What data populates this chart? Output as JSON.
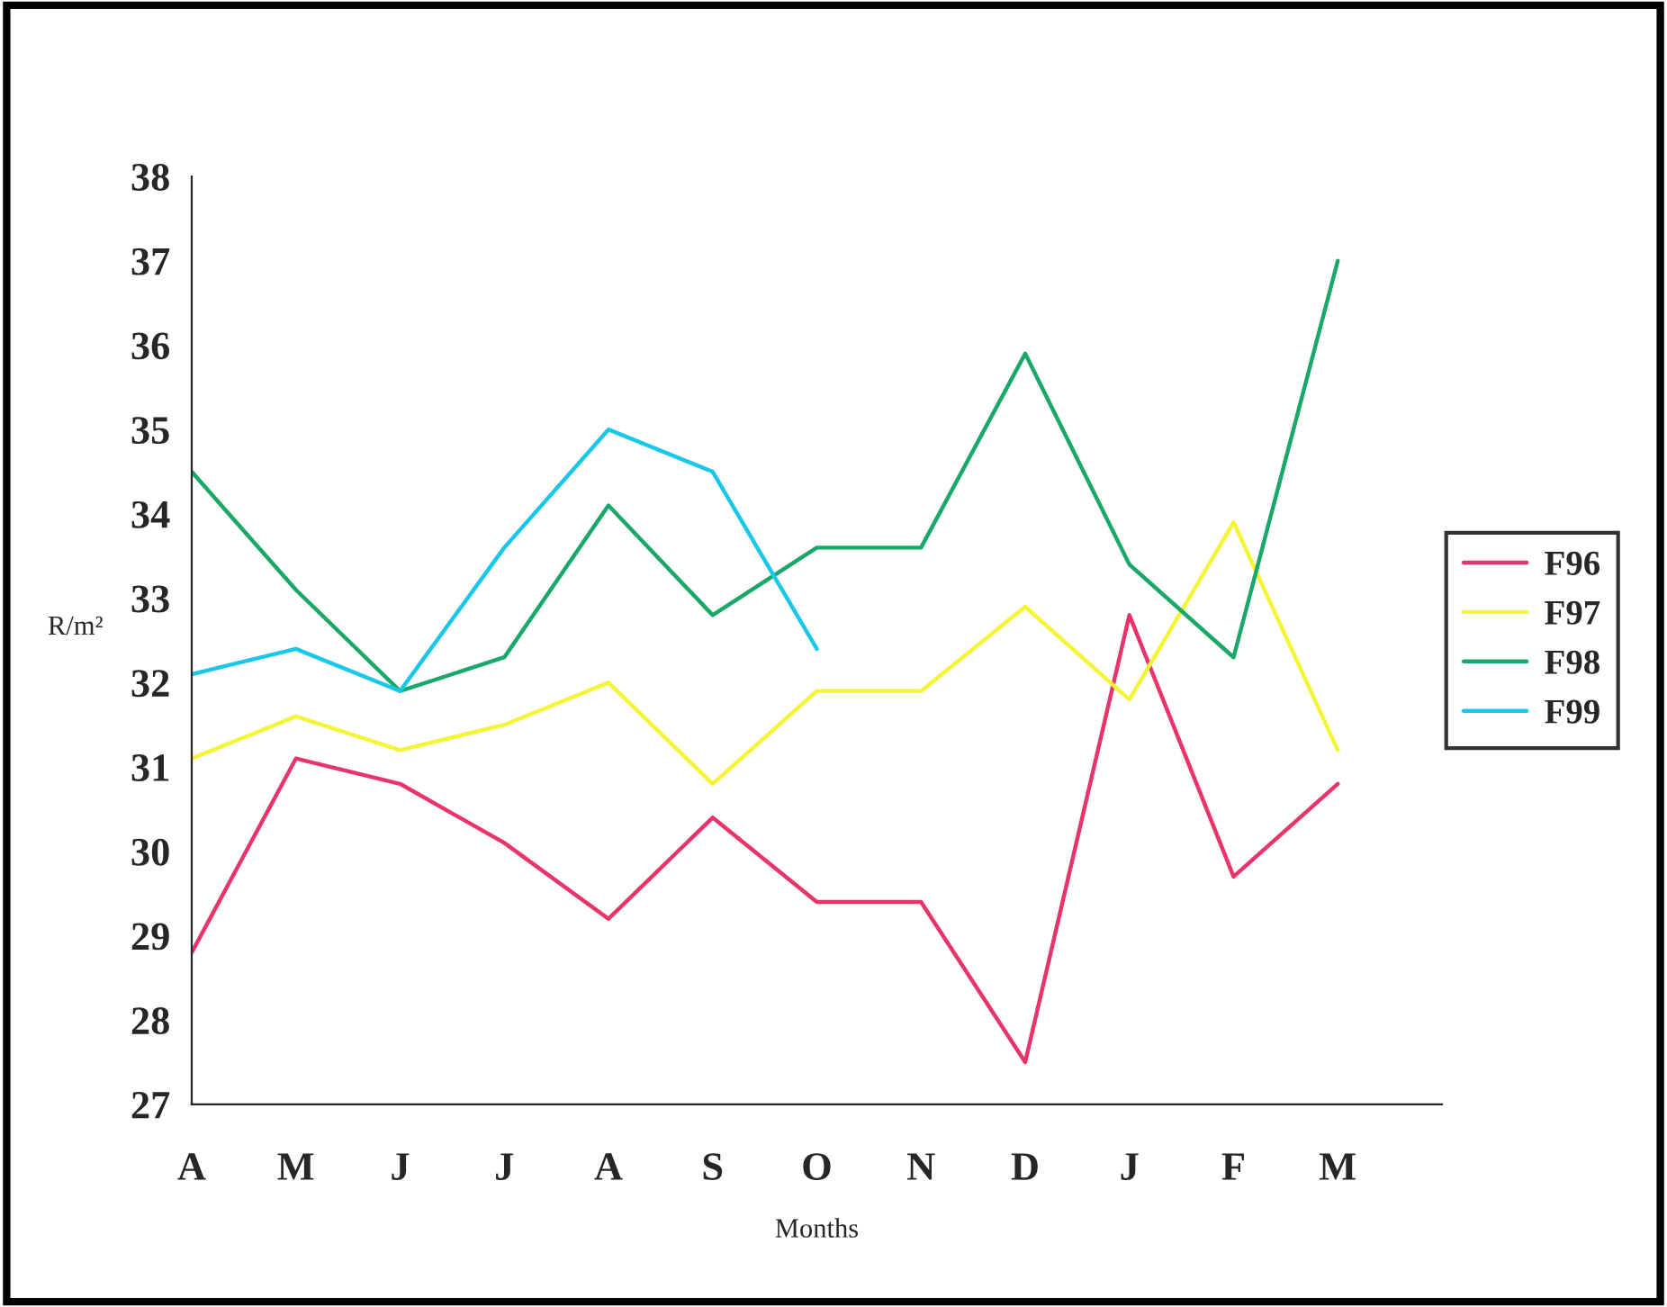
{
  "chart_data": {
    "type": "line",
    "xlabel": "Months",
    "ylabel": "R/m²",
    "categories": [
      "A",
      "M",
      "J",
      "J",
      "A",
      "S",
      "O",
      "N",
      "D",
      "J",
      "F",
      "M"
    ],
    "ylim": [
      27,
      38
    ],
    "yticks": [
      27,
      28,
      29,
      30,
      31,
      32,
      33,
      34,
      35,
      36,
      37,
      38
    ],
    "grid": false,
    "legend": "right",
    "line_style": "solid",
    "series": [
      {
        "name": "F96",
        "color": "#e8336b",
        "values": [
          28.8,
          31.1,
          30.8,
          30.1,
          29.2,
          30.4,
          29.4,
          29.4,
          27.5,
          32.8,
          29.7,
          30.8
        ]
      },
      {
        "name": "F97",
        "color": "#f5f538",
        "values": [
          31.1,
          31.6,
          31.2,
          31.5,
          32.0,
          30.8,
          31.9,
          31.9,
          32.9,
          31.8,
          33.9,
          31.2
        ]
      },
      {
        "name": "F98",
        "color": "#1aa86a",
        "values": [
          34.5,
          33.1,
          31.9,
          32.3,
          34.1,
          32.8,
          33.6,
          33.6,
          35.9,
          33.4,
          32.3,
          37.0
        ]
      },
      {
        "name": "F99",
        "color": "#19c8e8",
        "values": [
          32.1,
          32.4,
          31.9,
          33.6,
          35.0,
          34.5,
          32.4,
          null,
          null,
          null,
          null,
          null
        ]
      }
    ]
  }
}
